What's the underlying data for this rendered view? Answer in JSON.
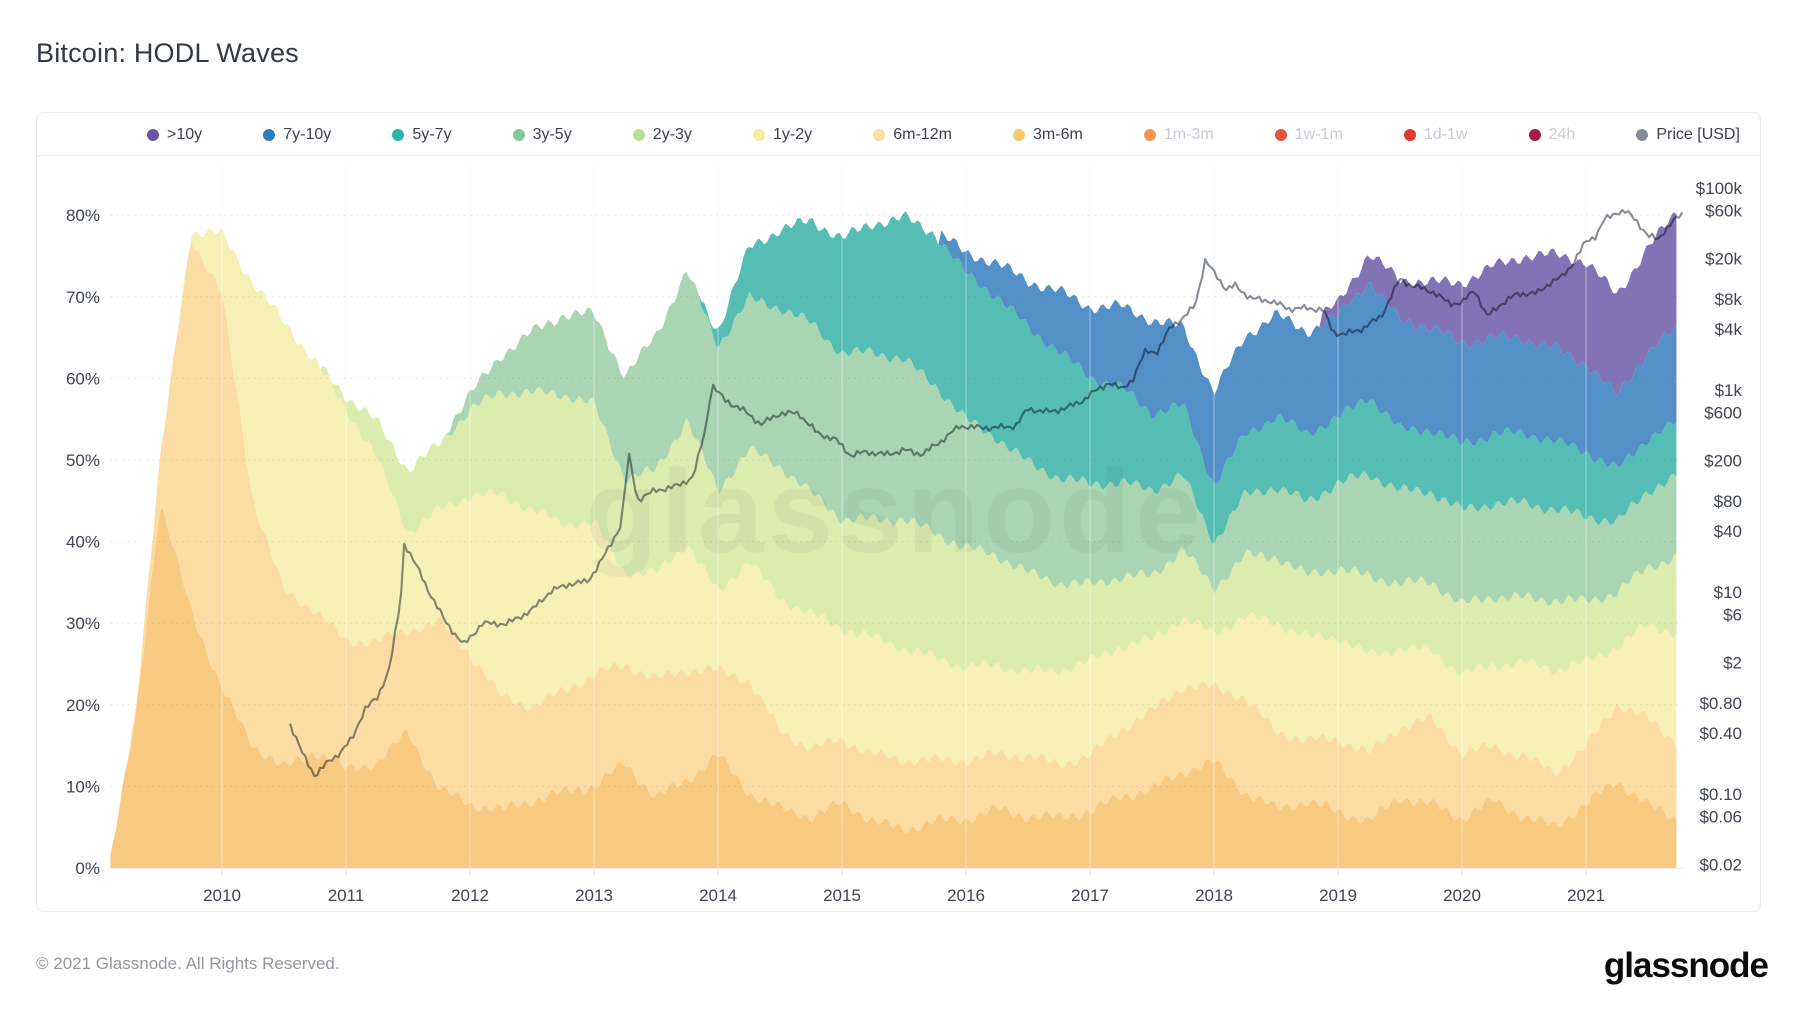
{
  "page": {
    "title": "Bitcoin: HODL Waves"
  },
  "watermark": "glassnode",
  "footer": {
    "copyright": "© 2021 Glassnode. All Rights Reserved.",
    "brand": "glassnode"
  },
  "chart_data": {
    "type": "area",
    "title": "Bitcoin: HODL Waves",
    "stack_unit": "percent of BTC supply",
    "legend_display_order": [
      ">10y",
      "7y-10y",
      "5y-7y",
      "3y-5y",
      "2y-3y",
      "1y-2y",
      "6m-12m",
      "3m-6m",
      "1m-3m",
      "1w-1m",
      "1d-1w",
      "24h",
      "Price [USD]"
    ],
    "x_years": [
      2009.1,
      2009.3,
      2009.5,
      2009.75,
      2010,
      2010.25,
      2010.5,
      2010.75,
      2011,
      2011.25,
      2011.5,
      2011.75,
      2012,
      2012.25,
      2012.5,
      2012.75,
      2013,
      2013.25,
      2013.5,
      2013.75,
      2014,
      2014.25,
      2014.5,
      2014.75,
      2015,
      2015.25,
      2015.5,
      2015.75,
      2016,
      2016.25,
      2016.5,
      2016.75,
      2017,
      2017.25,
      2017.5,
      2017.75,
      2018,
      2018.25,
      2018.5,
      2018.75,
      2019,
      2019.25,
      2019.5,
      2019.75,
      2020,
      2020.25,
      2020.5,
      2020.75,
      2021,
      2021.25,
      2021.5,
      2021.75
    ],
    "series": [
      {
        "name": "3m-6m",
        "color": "#f8c981",
        "dot": "#f9c96e",
        "enabled": true,
        "values": [
          1,
          18,
          45,
          32,
          22,
          15,
          12,
          14,
          12,
          13,
          17,
          10,
          8,
          7,
          8,
          9,
          10,
          13,
          9,
          11,
          14,
          9,
          7,
          6,
          8,
          6,
          5,
          6,
          6,
          7,
          6,
          6,
          7,
          9,
          10,
          12,
          13,
          9,
          7,
          8,
          7,
          6,
          9,
          8,
          6,
          8,
          6,
          5,
          8,
          11,
          8,
          6
        ]
      },
      {
        "name": "6m-12m",
        "color": "#fbdda4",
        "dot": "#fae398",
        "enabled": true,
        "values": [
          0,
          1,
          5,
          45,
          48,
          30,
          22,
          18,
          16,
          15,
          12,
          20,
          18,
          14,
          12,
          13,
          14,
          12,
          14,
          13,
          10,
          14,
          10,
          9,
          8,
          8,
          8,
          7,
          7,
          7,
          8,
          7,
          7,
          8,
          9,
          10,
          9,
          12,
          10,
          8,
          9,
          8,
          8,
          10,
          8,
          7,
          8,
          7,
          7,
          9,
          10,
          9
        ]
      },
      {
        "name": "1y-2y",
        "color": "#f7f0b6",
        "dot": "#f1ef9e",
        "enabled": true,
        "values": [
          0,
          0,
          0,
          1,
          8,
          27,
          33,
          30,
          28,
          22,
          12,
          14,
          20,
          25,
          24,
          20,
          18,
          11,
          13,
          16,
          10,
          15,
          16,
          16,
          13,
          14,
          14,
          13,
          12,
          11,
          10,
          11,
          11,
          10,
          9,
          9,
          7,
          10,
          13,
          12,
          12,
          12,
          10,
          9,
          10,
          10,
          11,
          12,
          10,
          7,
          12,
          14
        ]
      },
      {
        "name": "2y-3y",
        "color": "#dcebae",
        "dot": "#bcdc8f",
        "enabled": true,
        "values": [
          0,
          0,
          0,
          0,
          0,
          0,
          0,
          0,
          2,
          5,
          8,
          8,
          10,
          12,
          14,
          16,
          15,
          12,
          13,
          15,
          12,
          13,
          16,
          15,
          14,
          15,
          16,
          15,
          14,
          13,
          12,
          11,
          10,
          9,
          8,
          8,
          5,
          7,
          8,
          8,
          9,
          10,
          8,
          8,
          8,
          8,
          8,
          9,
          8,
          7,
          7,
          9
        ]
      },
      {
        "name": "3y-5y",
        "color": "#a9d5b2",
        "dot": "#83c79b",
        "enabled": true,
        "values": [
          0,
          0,
          0,
          0,
          0,
          0,
          0,
          0,
          0,
          0,
          0,
          0,
          2,
          5,
          8,
          10,
          11,
          12,
          16,
          18,
          18,
          19,
          20,
          21,
          20,
          20,
          19,
          18,
          16,
          15,
          14,
          13,
          12,
          11,
          10,
          9,
          6,
          8,
          9,
          9,
          10,
          12,
          11,
          11,
          12,
          12,
          12,
          11,
          10,
          8,
          9,
          10
        ]
      },
      {
        "name": "5y-7y",
        "color": "#55bdb4",
        "dot": "#2eb3a7",
        "enabled": true,
        "values": [
          0,
          0,
          0,
          0,
          0,
          0,
          0,
          0,
          0,
          0,
          0,
          0,
          0,
          0,
          0,
          0,
          0,
          0,
          0,
          0,
          2,
          6,
          9,
          12,
          14,
          16,
          18,
          19,
          18,
          17,
          16,
          15,
          13,
          12,
          10,
          9,
          7,
          7,
          8,
          8,
          8,
          10,
          8,
          8,
          8,
          8,
          8,
          8,
          8,
          7,
          7,
          7
        ]
      },
      {
        "name": "7y-10y",
        "color": "#5390c8",
        "dot": "#2e7dbe",
        "enabled": true,
        "values": [
          0,
          0,
          0,
          0,
          0,
          0,
          0,
          0,
          0,
          0,
          0,
          0,
          0,
          0,
          0,
          0,
          0,
          0,
          0,
          0,
          0,
          0,
          0,
          0,
          0,
          0,
          0,
          0,
          2,
          4,
          6,
          8,
          9,
          10,
          11,
          9,
          11,
          12,
          13,
          13,
          13,
          14,
          13,
          12,
          12,
          12,
          12,
          12,
          11,
          9,
          10,
          11
        ]
      },
      {
        "name": ">10y",
        "color": "#8273b5",
        "dot": "#6a55a4",
        "enabled": true,
        "values": [
          0,
          0,
          0,
          0,
          0,
          0,
          0,
          0,
          0,
          0,
          0,
          0,
          0,
          0,
          0,
          0,
          0,
          0,
          0,
          0,
          0,
          0,
          0,
          0,
          0,
          0,
          0,
          0,
          0,
          0,
          0,
          0,
          0,
          0,
          0,
          0,
          0,
          0,
          0,
          0,
          1,
          3,
          5,
          6,
          8,
          9,
          10,
          11,
          12,
          12,
          13,
          15
        ]
      }
    ],
    "disabled_series": [
      {
        "name": "1m-3m",
        "dot": "#f59455",
        "enabled": false
      },
      {
        "name": "1w-1m",
        "dot": "#e85340",
        "enabled": false
      },
      {
        "name": "1d-1w",
        "dot": "#de3a32",
        "enabled": false
      },
      {
        "name": "24h",
        "dot": "#a21c47",
        "enabled": false
      }
    ],
    "price": {
      "name": "Price [USD]",
      "dot": "#868c96",
      "color": "#878d95",
      "scale": "log",
      "axis": "right",
      "x": [
        2010.55,
        2010.65,
        2010.75,
        2010.85,
        2010.95,
        2011.05,
        2011.15,
        2011.25,
        2011.35,
        2011.44,
        2011.47,
        2011.55,
        2011.65,
        2011.8,
        2011.95,
        2012.1,
        2012.3,
        2012.5,
        2012.65,
        2012.8,
        2012.95,
        2013.1,
        2013.22,
        2013.28,
        2013.35,
        2013.5,
        2013.65,
        2013.8,
        2013.9,
        2013.95,
        2014.05,
        2014.2,
        2014.35,
        2014.5,
        2014.65,
        2014.8,
        2014.95,
        2015.07,
        2015.2,
        2015.35,
        2015.5,
        2015.65,
        2015.8,
        2015.95,
        2016.1,
        2016.25,
        2016.4,
        2016.5,
        2016.65,
        2016.8,
        2016.95,
        2017.05,
        2017.15,
        2017.25,
        2017.35,
        2017.45,
        2017.55,
        2017.65,
        2017.75,
        2017.85,
        2017.93,
        2018.02,
        2018.1,
        2018.17,
        2018.3,
        2018.45,
        2018.6,
        2018.75,
        2018.88,
        2018.96,
        2019.05,
        2019.2,
        2019.35,
        2019.5,
        2019.6,
        2019.75,
        2019.9,
        2020.0,
        2020.1,
        2020.2,
        2020.3,
        2020.45,
        2020.6,
        2020.7,
        2020.8,
        2020.9,
        2021.0,
        2021.08,
        2021.15,
        2021.25,
        2021.32,
        2021.4,
        2021.5,
        2021.58,
        2021.65,
        2021.72,
        2021.78
      ],
      "usd": [
        0.5,
        0.25,
        0.15,
        0.2,
        0.25,
        0.35,
        0.7,
        0.9,
        1.8,
        8,
        31,
        20,
        11,
        5,
        3,
        5,
        4.9,
        6.5,
        10,
        12,
        13,
        25,
        47,
        230,
        80,
        100,
        110,
        140,
        420,
        1150,
        800,
        620,
        450,
        590,
        600,
        380,
        320,
        220,
        240,
        230,
        260,
        235,
        310,
        430,
        420,
        430,
        450,
        660,
        600,
        640,
        790,
        1000,
        1200,
        1050,
        1300,
        2500,
        2300,
        4300,
        4900,
        7200,
        19000,
        14000,
        10000,
        11000,
        8000,
        7500,
        6300,
        6500,
        6400,
        3800,
        3600,
        4000,
        5300,
        12500,
        10800,
        9800,
        7300,
        7200,
        9800,
        5200,
        6800,
        9100,
        9200,
        11500,
        13000,
        18000,
        29000,
        33000,
        48000,
        58000,
        59000,
        50000,
        34000,
        31500,
        40000,
        48000,
        55000
      ]
    },
    "left_axis": {
      "unit": "%",
      "ticks": [
        0,
        10,
        20,
        30,
        40,
        50,
        60,
        70,
        80
      ]
    },
    "right_axis": {
      "scale": "log",
      "ticks": [
        {
          "label": "$100k",
          "value": 100000
        },
        {
          "label": "$60k",
          "value": 60000
        },
        {
          "label": "$20k",
          "value": 20000
        },
        {
          "label": "$8k",
          "value": 8000
        },
        {
          "label": "$4k",
          "value": 4000
        },
        {
          "label": "$1k",
          "value": 1000
        },
        {
          "label": "$600",
          "value": 600
        },
        {
          "label": "$200",
          "value": 200
        },
        {
          "label": "$80",
          "value": 80
        },
        {
          "label": "$40",
          "value": 40
        },
        {
          "label": "$10",
          "value": 10
        },
        {
          "label": "$6",
          "value": 6
        },
        {
          "label": "$2",
          "value": 2
        },
        {
          "label": "$0.80",
          "value": 0.8
        },
        {
          "label": "$0.40",
          "value": 0.4
        },
        {
          "label": "$0.10",
          "value": 0.1
        },
        {
          "label": "$0.06",
          "value": 0.06
        },
        {
          "label": "$0.02",
          "value": 0.02
        }
      ]
    },
    "x_axis": {
      "ticks": [
        2010,
        2011,
        2012,
        2013,
        2014,
        2015,
        2016,
        2017,
        2018,
        2019,
        2020,
        2021
      ]
    }
  }
}
